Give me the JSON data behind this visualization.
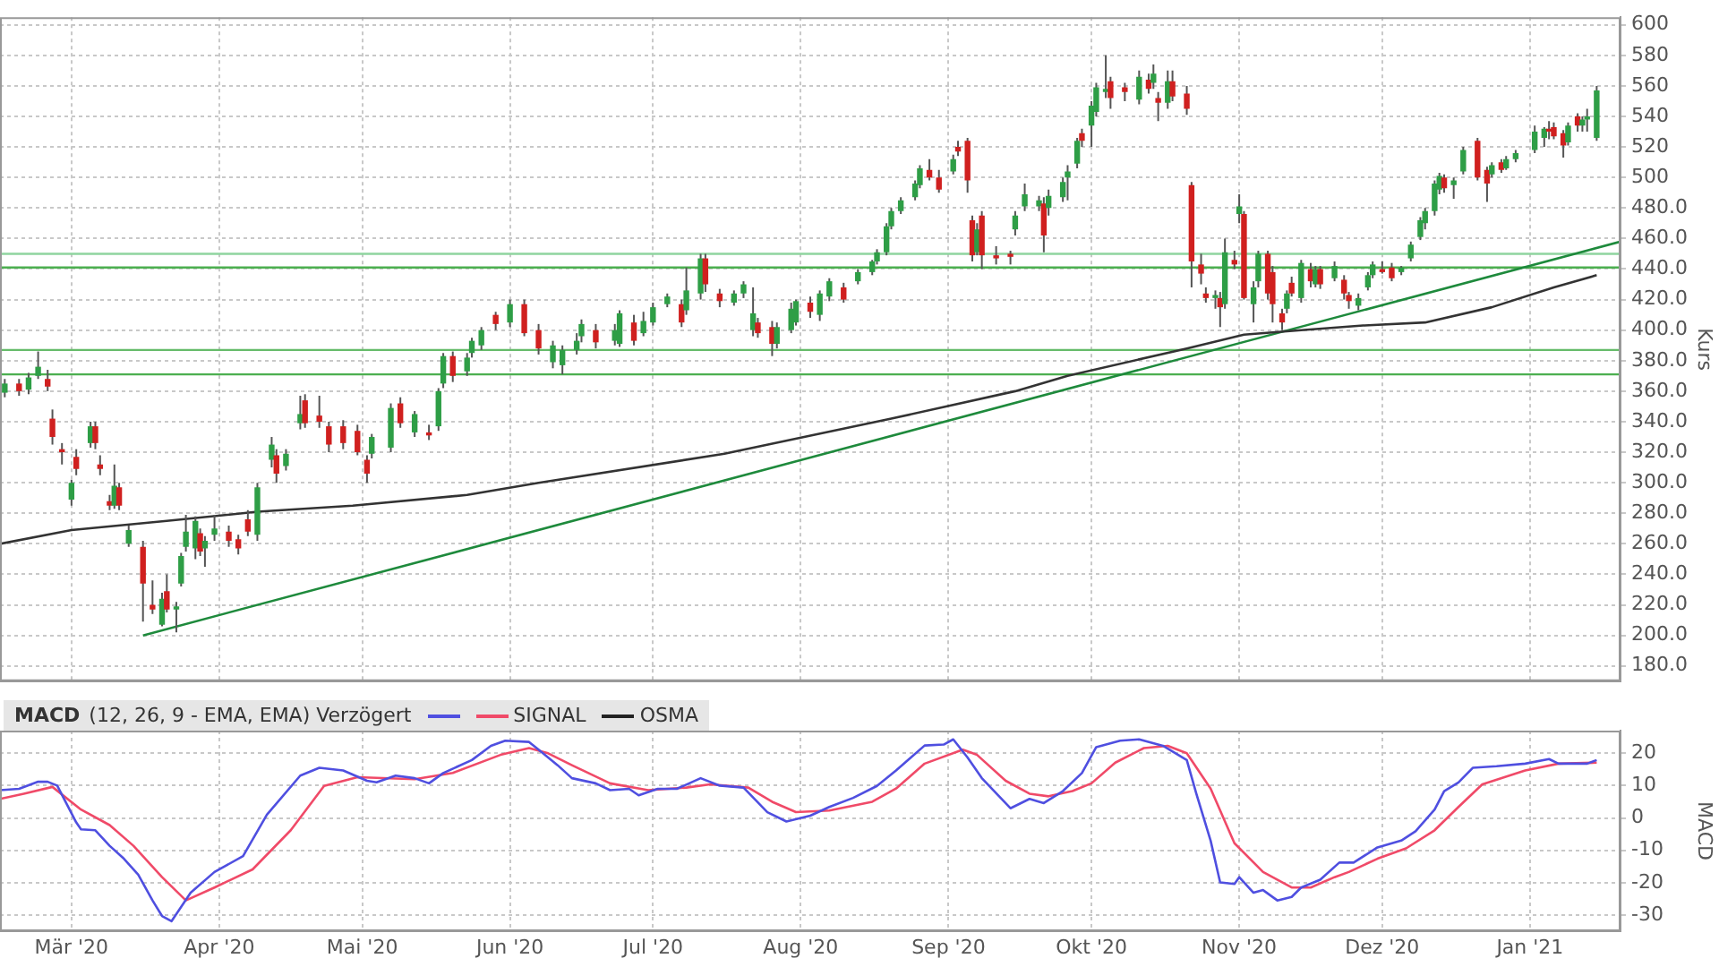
{
  "chart_data": [
    {
      "type": "candlestick",
      "ylabel": "Kurs",
      "xlim": [
        "2020-02-15",
        "2021-01-20"
      ],
      "ylim": [
        170,
        605
      ],
      "xticks": [
        {
          "value": "2020-03-01",
          "label": null
        },
        {
          "value": "2020-04-01",
          "label": null
        },
        {
          "value": "2020-05-01",
          "label": null
        },
        {
          "value": "2020-06-01",
          "label": null
        },
        {
          "value": "2020-07-01",
          "label": null
        },
        {
          "value": "2020-08-01",
          "label": null
        },
        {
          "value": "2020-09-01",
          "label": null
        },
        {
          "value": "2020-10-01",
          "label": null
        },
        {
          "value": "2020-11-01",
          "label": null
        },
        {
          "value": "2020-12-01",
          "label": null
        },
        {
          "value": "2021-01-01",
          "label": null
        }
      ],
      "yticks": [
        {
          "value": 180,
          "label": "180.0"
        },
        {
          "value": 200,
          "label": "200.0"
        },
        {
          "value": 220,
          "label": "220.0"
        },
        {
          "value": 240,
          "label": "240.0"
        },
        {
          "value": 260,
          "label": "260.0"
        },
        {
          "value": 280,
          "label": "280.0"
        },
        {
          "value": 300,
          "label": "300.0"
        },
        {
          "value": 320,
          "label": "320.0"
        },
        {
          "value": 340,
          "label": "340.0"
        },
        {
          "value": 360,
          "label": "360.0"
        },
        {
          "value": 380,
          "label": "380.0"
        },
        {
          "value": 400,
          "label": "400.0"
        },
        {
          "value": 420,
          "label": "420.0"
        },
        {
          "value": 440,
          "label": "440.0"
        },
        {
          "value": 460,
          "label": "460.0"
        },
        {
          "value": 480,
          "label": "480.0"
        },
        500,
        520,
        540,
        560,
        580,
        600
      ],
      "tick_labels": "y",
      "grid": true,
      "legend": false,
      "x": [
        "2020-02-16",
        "2020-02-19",
        "2020-02-21",
        "2020-02-23",
        "2020-02-25",
        "2020-02-26",
        "2020-02-28",
        "2020-03-01",
        "2020-03-02",
        "2020-03-05",
        "2020-03-06",
        "2020-03-07",
        "2020-03-09",
        "2020-03-10",
        "2020-03-11",
        "2020-03-13",
        "2020-03-16",
        "2020-03-18",
        "2020-03-20",
        "2020-03-21",
        "2020-03-23",
        "2020-03-24",
        "2020-03-25",
        "2020-03-27",
        "2020-03-28",
        "2020-03-29",
        "2020-03-31",
        "2020-04-03",
        "2020-04-05",
        "2020-04-07",
        "2020-04-09",
        "2020-04-12",
        "2020-04-13",
        "2020-04-15",
        "2020-04-18",
        "2020-04-19",
        "2020-04-22",
        "2020-04-24",
        "2020-04-27",
        "2020-04-30",
        "2020-05-02",
        "2020-05-03",
        "2020-05-07",
        "2020-05-09",
        "2020-05-12",
        "2020-05-15",
        "2020-05-17",
        "2020-05-18",
        "2020-05-20",
        "2020-05-23",
        "2020-05-24",
        "2020-05-26",
        "2020-05-29",
        "2020-06-01",
        "2020-06-04",
        "2020-06-07",
        "2020-06-10",
        "2020-06-12",
        "2020-06-15",
        "2020-06-16",
        "2020-06-19",
        "2020-06-23",
        "2020-06-24",
        "2020-06-27",
        "2020-06-29",
        "2020-07-01",
        "2020-07-04",
        "2020-07-07",
        "2020-07-08",
        "2020-07-11",
        "2020-07-12",
        "2020-07-15",
        "2020-07-18",
        "2020-07-20",
        "2020-07-22",
        "2020-07-23",
        "2020-07-26",
        "2020-07-27",
        "2020-07-30",
        "2020-07-31",
        "2020-08-03",
        "2020-08-05",
        "2020-08-07",
        "2020-08-10",
        "2020-08-13",
        "2020-08-16",
        "2020-08-17",
        "2020-08-19",
        "2020-08-20",
        "2020-08-22",
        "2020-08-25",
        "2020-08-26",
        "2020-08-28",
        "2020-08-30",
        "2020-09-02",
        "2020-09-03",
        "2020-09-05",
        "2020-09-06",
        "2020-09-07",
        "2020-09-08",
        "2020-09-11",
        "2020-09-14",
        "2020-09-15",
        "2020-09-17",
        "2020-09-20",
        "2020-09-21",
        "2020-09-22",
        "2020-09-25",
        "2020-09-26",
        "2020-09-28",
        "2020-09-29",
        "2020-10-01",
        "2020-10-02",
        "2020-10-04",
        "2020-10-05",
        "2020-10-08",
        "2020-10-11",
        "2020-10-13",
        "2020-10-14",
        "2020-10-15",
        "2020-10-17",
        "2020-10-18",
        "2020-10-21",
        "2020-10-22",
        "2020-10-24",
        "2020-10-25",
        "2020-10-27",
        "2020-10-28",
        "2020-10-29",
        "2020-10-31",
        "2020-11-01",
        "2020-11-02",
        "2020-11-04",
        "2020-11-05",
        "2020-11-07",
        "2020-11-08",
        "2020-11-10",
        "2020-11-11",
        "2020-11-12",
        "2020-11-14",
        "2020-11-16",
        "2020-11-17",
        "2020-11-18",
        "2020-11-21",
        "2020-11-23",
        "2020-11-24",
        "2020-11-26",
        "2020-11-28",
        "2020-11-29",
        "2020-12-01",
        "2020-12-03",
        "2020-12-05",
        "2020-12-07",
        "2020-12-09",
        "2020-12-10",
        "2020-12-12",
        "2020-12-13",
        "2020-12-14",
        "2020-12-16",
        "2020-12-18",
        "2020-12-21",
        "2020-12-23",
        "2020-12-24",
        "2020-12-26",
        "2020-12-27",
        "2020-12-29",
        "2021-01-02",
        "2021-01-04",
        "2021-01-05",
        "2021-01-06",
        "2021-01-08",
        "2021-01-09",
        "2021-01-11",
        "2021-01-12",
        "2021-01-13",
        "2021-01-15"
      ],
      "ohlc": [
        [
          359,
          368,
          356,
          365
        ],
        [
          365,
          368,
          357,
          360
        ],
        [
          361,
          372,
          358,
          369
        ],
        [
          370,
          386,
          368,
          376
        ],
        [
          368,
          374,
          360,
          363
        ],
        [
          342,
          348,
          325,
          330
        ],
        [
          322,
          326,
          312,
          320
        ],
        [
          289,
          302,
          285,
          300
        ],
        [
          317,
          322,
          305,
          309
        ],
        [
          326,
          340,
          323,
          337
        ],
        [
          337,
          340,
          322,
          326
        ],
        [
          312,
          318,
          305,
          309
        ],
        [
          288,
          292,
          282,
          285
        ],
        [
          285,
          312,
          283,
          298
        ],
        [
          297,
          300,
          282,
          285
        ],
        [
          260,
          272,
          258,
          269
        ],
        [
          258,
          262,
          209,
          234
        ],
        [
          220,
          236,
          214,
          217
        ],
        [
          207,
          228,
          206,
          224
        ],
        [
          229,
          240,
          215,
          217
        ],
        [
          217,
          222,
          202,
          219
        ],
        [
          234,
          254,
          232,
          252
        ],
        [
          258,
          279,
          255,
          268
        ],
        [
          257,
          278,
          250,
          275
        ],
        [
          267,
          270,
          252,
          255
        ],
        [
          257,
          265,
          245,
          262
        ],
        [
          266,
          279,
          262,
          270
        ],
        [
          268,
          272,
          258,
          262
        ],
        [
          263,
          266,
          253,
          257
        ],
        [
          276,
          282,
          265,
          268
        ],
        [
          266,
          300,
          262,
          297
        ],
        [
          315,
          330,
          310,
          325
        ],
        [
          318,
          322,
          300,
          306
        ],
        [
          311,
          322,
          308,
          319
        ],
        [
          339,
          357,
          335,
          345
        ],
        [
          354,
          358,
          336,
          339
        ],
        [
          344,
          357,
          336,
          340
        ],
        [
          337,
          340,
          320,
          325
        ],
        [
          337,
          341,
          322,
          326
        ],
        [
          334,
          338,
          318,
          320
        ],
        [
          315,
          318,
          300,
          306
        ],
        [
          319,
          332,
          316,
          330
        ],
        [
          323,
          352,
          320,
          349
        ],
        [
          352,
          356,
          336,
          339
        ],
        [
          333,
          347,
          330,
          345
        ],
        [
          333,
          338,
          328,
          331
        ],
        [
          337,
          362,
          334,
          360
        ],
        [
          365,
          385,
          362,
          383
        ],
        [
          383,
          386,
          366,
          370
        ],
        [
          373,
          385,
          370,
          382
        ],
        [
          385,
          395,
          382,
          393
        ],
        [
          390,
          402,
          387,
          400
        ],
        [
          410,
          412,
          400,
          404
        ],
        [
          405,
          420,
          402,
          417
        ],
        [
          417,
          420,
          396,
          398
        ],
        [
          400,
          404,
          384,
          388
        ],
        [
          379,
          393,
          375,
          390
        ],
        [
          377,
          390,
          371,
          387
        ],
        [
          387,
          398,
          384,
          393
        ],
        [
          396,
          407,
          392,
          404
        ],
        [
          400,
          404,
          388,
          392
        ],
        [
          393,
          404,
          390,
          400
        ],
        [
          391,
          413,
          389,
          411
        ],
        [
          405,
          410,
          390,
          393
        ],
        [
          398,
          412,
          396,
          406
        ],
        [
          405,
          418,
          403,
          415
        ],
        [
          417,
          424,
          415,
          422
        ],
        [
          417,
          420,
          402,
          405
        ],
        [
          413,
          441,
          410,
          426
        ],
        [
          424,
          450,
          420,
          447
        ],
        [
          447,
          450,
          425,
          430
        ],
        [
          424,
          427,
          415,
          419
        ],
        [
          418,
          426,
          416,
          424
        ],
        [
          424,
          432,
          421,
          430
        ],
        [
          400,
          428,
          396,
          411
        ],
        [
          405,
          408,
          395,
          398
        ],
        [
          402,
          406,
          383,
          391
        ],
        [
          391,
          405,
          388,
          402
        ],
        [
          400,
          418,
          398,
          414
        ],
        [
          405,
          420,
          403,
          419
        ],
        [
          418,
          422,
          408,
          412
        ],
        [
          410,
          426,
          406,
          424
        ],
        [
          422,
          434,
          419,
          432
        ],
        [
          428,
          431,
          418,
          420
        ],
        [
          432,
          440,
          430,
          438
        ],
        [
          438,
          446,
          436,
          445
        ],
        [
          445,
          453,
          443,
          451
        ],
        [
          451,
          470,
          449,
          468
        ],
        [
          468,
          480,
          466,
          478
        ],
        [
          478,
          487,
          476,
          485
        ],
        [
          487,
          498,
          485,
          496
        ],
        [
          495,
          508,
          493,
          506
        ],
        [
          505,
          512,
          498,
          500
        ],
        [
          500,
          505,
          490,
          492
        ],
        [
          504,
          515,
          502,
          512
        ],
        [
          520,
          524,
          514,
          517
        ],
        [
          524,
          526,
          490,
          498
        ],
        [
          472,
          475,
          445,
          449
        ],
        [
          451,
          470,
          449,
          466
        ],
        [
          475,
          478,
          440,
          449
        ],
        [
          449,
          455,
          443,
          447
        ],
        [
          450,
          452,
          443,
          448
        ],
        [
          466,
          478,
          462,
          475
        ],
        [
          481,
          496,
          478,
          489
        ],
        [
          481,
          488,
          478,
          485
        ],
        [
          483,
          487,
          451,
          462
        ],
        [
          480,
          492,
          475,
          488
        ],
        [
          487,
          500,
          484,
          497
        ],
        [
          500,
          508,
          485,
          504
        ],
        [
          509,
          526,
          506,
          524
        ],
        [
          529,
          532,
          520,
          524
        ],
        [
          534,
          550,
          520,
          547
        ],
        [
          543,
          562,
          540,
          559
        ],
        [
          556,
          580,
          552,
          558
        ],
        [
          563,
          566,
          545,
          552
        ],
        [
          559,
          562,
          550,
          556
        ],
        [
          551,
          570,
          548,
          566
        ],
        [
          564,
          568,
          555,
          558
        ],
        [
          562,
          574,
          558,
          568
        ],
        [
          552,
          556,
          537,
          549
        ],
        [
          549,
          570,
          545,
          563
        ],
        [
          563,
          570,
          550,
          553
        ],
        [
          555,
          560,
          541,
          545
        ],
        [
          495,
          497,
          428,
          445
        ],
        [
          443,
          450,
          430,
          437
        ],
        [
          424,
          428,
          418,
          421
        ],
        [
          421,
          426,
          414,
          423
        ],
        [
          421,
          425,
          402,
          415
        ],
        [
          417,
          460,
          414,
          451
        ],
        [
          446,
          452,
          440,
          443
        ],
        [
          476,
          489,
          470,
          481
        ],
        [
          476,
          478,
          420,
          421
        ],
        [
          417,
          432,
          405,
          428
        ],
        [
          432,
          452,
          428,
          450
        ],
        [
          450,
          452,
          420,
          424
        ],
        [
          438,
          442,
          405,
          417
        ],
        [
          411,
          414,
          400,
          405
        ],
        [
          414,
          426,
          411,
          424
        ],
        [
          431,
          435,
          422,
          424
        ],
        [
          421,
          446,
          418,
          444
        ],
        [
          440,
          444,
          428,
          432
        ],
        [
          430,
          442,
          428,
          440
        ],
        [
          440,
          442,
          427,
          430
        ],
        [
          434,
          445,
          432,
          442
        ],
        [
          433,
          436,
          420,
          424
        ],
        [
          423,
          425,
          414,
          419
        ],
        [
          416,
          424,
          413,
          421
        ],
        [
          428,
          438,
          426,
          436
        ],
        [
          436,
          445,
          434,
          443
        ],
        [
          440,
          445,
          437,
          438
        ],
        [
          441,
          444,
          432,
          434
        ],
        [
          438,
          442,
          436,
          441
        ],
        [
          447,
          458,
          445,
          456
        ],
        [
          461,
          474,
          459,
          472
        ],
        [
          470,
          480,
          466,
          478
        ],
        [
          478,
          498,
          475,
          496
        ],
        [
          492,
          503,
          489,
          501
        ],
        [
          500,
          502,
          490,
          493
        ],
        [
          495,
          500,
          486,
          498
        ],
        [
          504,
          520,
          502,
          518
        ],
        [
          524,
          526,
          498,
          500
        ],
        [
          505,
          507,
          484,
          496
        ],
        [
          502,
          510,
          500,
          508
        ],
        [
          510,
          512,
          503,
          505
        ],
        [
          506,
          514,
          505,
          512
        ],
        [
          512,
          518,
          510,
          516
        ],
        [
          518,
          534,
          516,
          530
        ],
        [
          526,
          533,
          520,
          532
        ],
        [
          532,
          537,
          525,
          530
        ],
        [
          533,
          536,
          525,
          527
        ],
        [
          529,
          531,
          513,
          521
        ],
        [
          523,
          536,
          521,
          534
        ],
        [
          540,
          542,
          530,
          534
        ],
        [
          534,
          540,
          530,
          538
        ],
        [
          538,
          545,
          530,
          540
        ],
        [
          526,
          560,
          524,
          557
        ]
      ],
      "colors": [
        "#2e9e46",
        "#d0201f",
        "#2e9e46",
        "#2e9e46",
        "#d0201f",
        "#d0201f",
        "#d0201f",
        "#2e9e46",
        "#d0201f",
        "#2e9e46",
        "#d0201f",
        "#d0201f",
        "#d0201f",
        "#2e9e46",
        "#d0201f",
        "#2e9e46",
        "#d0201f",
        "#d0201f",
        "#2e9e46",
        "#d0201f",
        "#2e9e46",
        "#2e9e46",
        "#2e9e46",
        "#2e9e46",
        "#d0201f",
        "#2e9e46",
        "#2e9e46",
        "#d0201f",
        "#d0201f",
        "#d0201f",
        "#2e9e46",
        "#2e9e46",
        "#d0201f",
        "#2e9e46",
        "#2e9e46",
        "#d0201f",
        "#d0201f",
        "#d0201f",
        "#d0201f",
        "#d0201f",
        "#d0201f",
        "#2e9e46",
        "#2e9e46",
        "#d0201f",
        "#2e9e46",
        "#d0201f",
        "#2e9e46",
        "#2e9e46",
        "#d0201f",
        "#2e9e46",
        "#2e9e46",
        "#2e9e46",
        "#d0201f",
        "#2e9e46",
        "#d0201f",
        "#d0201f",
        "#2e9e46",
        "#2e9e46",
        "#2e9e46",
        "#2e9e46",
        "#d0201f",
        "#2e9e46",
        "#2e9e46",
        "#d0201f",
        "#2e9e46",
        "#2e9e46",
        "#2e9e46",
        "#d0201f",
        "#2e9e46",
        "#2e9e46",
        "#d0201f",
        "#d0201f",
        "#2e9e46",
        "#2e9e46",
        "#2e9e46",
        "#d0201f",
        "#d0201f",
        "#2e9e46",
        "#2e9e46",
        "#2e9e46",
        "#d0201f",
        "#2e9e46",
        "#2e9e46",
        "#d0201f",
        "#2e9e46",
        "#2e9e46",
        "#2e9e46",
        "#2e9e46",
        "#2e9e46",
        "#2e9e46",
        "#2e9e46",
        "#2e9e46",
        "#d0201f",
        "#d0201f",
        "#2e9e46",
        "#d0201f",
        "#d0201f",
        "#d0201f",
        "#2e9e46",
        "#d0201f",
        "#d0201f",
        "#d0201f",
        "#2e9e46",
        "#2e9e46",
        "#2e9e46",
        "#d0201f",
        "#2e9e46",
        "#2e9e46",
        "#2e9e46",
        "#2e9e46",
        "#d0201f",
        "#2e9e46",
        "#2e9e46",
        "#2e9e46",
        "#d0201f",
        "#d0201f",
        "#2e9e46",
        "#d0201f",
        "#2e9e46",
        "#d0201f",
        "#2e9e46",
        "#d0201f",
        "#d0201f",
        "#d0201f",
        "#d0201f",
        "#d0201f",
        "#2e9e46",
        "#d0201f",
        "#2e9e46",
        "#d0201f",
        "#2e9e46",
        "#d0201f",
        "#2e9e46",
        "#2e9e46",
        "#d0201f",
        "#d0201f",
        "#d0201f",
        "#2e9e46",
        "#d0201f",
        "#2e9e46",
        "#d0201f",
        "#2e9e46",
        "#d0201f",
        "#2e9e46",
        "#d0201f",
        "#d0201f",
        "#2e9e46",
        "#2e9e46",
        "#2e9e46",
        "#d0201f",
        "#d0201f",
        "#2e9e46",
        "#2e9e46",
        "#2e9e46",
        "#2e9e46",
        "#2e9e46",
        "#2e9e46",
        "#d0201f",
        "#2e9e46",
        "#2e9e46",
        "#d0201f",
        "#d0201f",
        "#2e9e46",
        "#d0201f",
        "#2e9e46",
        "#2e9e46",
        "#2e9e46",
        "#2e9e46",
        "#d0201f",
        "#d0201f",
        "#d0201f",
        "#2e9e46",
        "#d0201f",
        "#2e9e46",
        "#2e9e46",
        "#2e9e46"
      ],
      "series": [
        {
          "type": "line",
          "color": "#333333",
          "x": [
            "2020-02-15",
            "2020-03-01",
            "2020-03-21",
            "2020-04-09",
            "2020-04-29",
            "2020-05-23",
            "2020-06-07",
            "2020-07-16",
            "2020-08-20",
            "2020-09-15",
            "2020-09-26",
            "2020-10-21",
            "2020-11-02",
            "2020-11-14",
            "2020-11-27",
            "2020-12-10",
            "2020-12-24",
            "2021-01-06",
            "2021-01-15"
          ],
          "values": [
            260,
            269,
            275,
            281,
            285,
            292,
            300,
            319,
            342,
            360,
            370,
            388,
            397,
            400,
            403,
            405,
            415,
            428,
            436
          ]
        },
        {
          "type": "line",
          "color": "#1e8a3c",
          "x": [
            "2020-03-16",
            "2021-01-20"
          ],
          "values": [
            200,
            458
          ]
        }
      ],
      "ref_lines": [
        {
          "axis": "y",
          "value": 450,
          "color": "#8fd49f"
        },
        {
          "axis": "y",
          "value": 441,
          "color": "#4caf50"
        },
        {
          "axis": "y",
          "value": 387,
          "color": "#66bb6a"
        },
        {
          "axis": "y",
          "value": 371,
          "color": "#4caf50"
        }
      ]
    },
    {
      "type": "line",
      "title": "MACD",
      "subtitle": "(12, 26, 9 - EMA, EMA) Verzögert",
      "ylabel": "MACD",
      "xlim": [
        "2020-02-15",
        "2021-01-20"
      ],
      "ylim": [
        -35,
        27
      ],
      "xticks": [
        {
          "value": "2020-03-01",
          "label": "Mär '20"
        },
        {
          "value": "2020-04-01",
          "label": "Apr '20"
        },
        {
          "value": "2020-05-01",
          "label": "Mai '20"
        },
        {
          "value": "2020-06-01",
          "label": "Jun '20"
        },
        {
          "value": "2020-07-01",
          "label": "Jul '20"
        },
        {
          "value": "2020-08-01",
          "label": "Aug '20"
        },
        {
          "value": "2020-09-01",
          "label": "Sep '20"
        },
        {
          "value": "2020-10-01",
          "label": "Okt '20"
        },
        {
          "value": "2020-11-01",
          "label": "Nov '20"
        },
        {
          "value": "2020-12-01",
          "label": "Dez '20"
        },
        {
          "value": "2021-01-01",
          "label": "Jan '21"
        }
      ],
      "yticks": [
        -30,
        -20,
        -10,
        0,
        10,
        20
      ],
      "grid": true,
      "legend": "top left",
      "series": [
        {
          "color": "#4f4fe0",
          "x": [
            "2020-02-15",
            "2020-02-19",
            "2020-02-23",
            "2020-02-25",
            "2020-02-27",
            "2020-03-02",
            "2020-03-03",
            "2020-03-06",
            "2020-03-09",
            "2020-03-12",
            "2020-03-15",
            "2020-03-18",
            "2020-03-20",
            "2020-03-22",
            "2020-03-26",
            "2020-03-31",
            "2020-04-06",
            "2020-04-11",
            "2020-04-18",
            "2020-04-22",
            "2020-04-27",
            "2020-05-02",
            "2020-05-04",
            "2020-05-08",
            "2020-05-12",
            "2020-05-15",
            "2020-05-18",
            "2020-05-24",
            "2020-05-28",
            "2020-05-31",
            "2020-06-05",
            "2020-06-07",
            "2020-06-11",
            "2020-06-14",
            "2020-06-19",
            "2020-06-22",
            "2020-06-26",
            "2020-06-28",
            "2020-07-02",
            "2020-07-06",
            "2020-07-11",
            "2020-07-15",
            "2020-07-20",
            "2020-07-25",
            "2020-07-29",
            "2020-08-03",
            "2020-08-07",
            "2020-08-12",
            "2020-08-17",
            "2020-08-21",
            "2020-08-27",
            "2020-08-31",
            "2020-09-02",
            "2020-09-05",
            "2020-09-08",
            "2020-09-14",
            "2020-09-18",
            "2020-09-21",
            "2020-09-25",
            "2020-09-29",
            "2020-10-02",
            "2020-10-07",
            "2020-10-11",
            "2020-10-16",
            "2020-10-21",
            "2020-10-23",
            "2020-10-26",
            "2020-10-28",
            "2020-10-31",
            "2020-11-01",
            "2020-11-04",
            "2020-11-06",
            "2020-11-09",
            "2020-11-12",
            "2020-11-14",
            "2020-11-18",
            "2020-11-22",
            "2020-11-25",
            "2020-11-30",
            "2020-12-05",
            "2020-12-08",
            "2020-12-12",
            "2020-12-14",
            "2020-12-17",
            "2020-12-20",
            "2020-12-25",
            "2020-12-31",
            "2021-01-05",
            "2021-01-07",
            "2021-01-13",
            "2021-01-15"
          ],
          "values": [
            8.6,
            9,
            11.2,
            11.2,
            10,
            -1.4,
            -3.5,
            -3.8,
            -8.6,
            -12.6,
            -17.5,
            -25.5,
            -30.3,
            -31.9,
            -23.1,
            -16.7,
            -11.8,
            1,
            13.1,
            15.5,
            14.7,
            11.5,
            11,
            13.1,
            12.3,
            10.7,
            13.9,
            17.9,
            22.3,
            23.9,
            23.5,
            21.1,
            16.3,
            12.3,
            10.7,
            8.6,
            9,
            7,
            9,
            9,
            12.3,
            10,
            9.4,
            1.8,
            -1.1,
            0.7,
            3.4,
            6.2,
            9.9,
            14.7,
            22.4,
            22.7,
            24.3,
            18.7,
            12.3,
            3,
            5.9,
            4.6,
            8.3,
            13.9,
            21.9,
            23.9,
            24.3,
            22.3,
            17.9,
            7.5,
            -7,
            -19.9,
            -20.4,
            -18.3,
            -23.1,
            -22.3,
            -25.5,
            -24.4,
            -21.5,
            -19.1,
            -13.8,
            -13.8,
            -9.1,
            -7,
            -4.1,
            2.6,
            8.3,
            11,
            15.5,
            16,
            16.8,
            18.2,
            16.8,
            16.8,
            17.9
          ]
        },
        {
          "name": "SIGNAL",
          "color": "#f04a68",
          "x": [
            "2020-02-15",
            "2020-02-20",
            "2020-02-26",
            "2020-03-03",
            "2020-03-09",
            "2020-03-14",
            "2020-03-20",
            "2020-03-25",
            "2020-03-31",
            "2020-04-08",
            "2020-04-16",
            "2020-04-23",
            "2020-04-30",
            "2020-05-12",
            "2020-05-20",
            "2020-05-30",
            "2020-06-05",
            "2020-06-09",
            "2020-06-14",
            "2020-06-22",
            "2020-06-30",
            "2020-07-08",
            "2020-07-13",
            "2020-07-21",
            "2020-07-26",
            "2020-07-31",
            "2020-08-07",
            "2020-08-16",
            "2020-08-21",
            "2020-08-27",
            "2020-09-04",
            "2020-09-07",
            "2020-09-13",
            "2020-09-18",
            "2020-09-22",
            "2020-09-27",
            "2020-10-01",
            "2020-10-06",
            "2020-10-12",
            "2020-10-17",
            "2020-10-21",
            "2020-10-26",
            "2020-10-31",
            "2020-11-06",
            "2020-11-12",
            "2020-11-16",
            "2020-11-21",
            "2020-11-24",
            "2020-11-30",
            "2020-12-06",
            "2020-12-12",
            "2020-12-17",
            "2020-12-22",
            "2020-12-31",
            "2021-01-07",
            "2021-01-15"
          ],
          "values": [
            5.9,
            7.5,
            9.6,
            2.6,
            -2.2,
            -8.6,
            -18.3,
            -25.5,
            -21.5,
            -15.9,
            -3.8,
            9.9,
            12.6,
            12,
            13.9,
            19.5,
            21.6,
            20,
            16.3,
            10.7,
            8.6,
            9.4,
            10.4,
            9.4,
            5,
            1.8,
            2.3,
            5,
            9.1,
            16.8,
            21.1,
            19.5,
            11.5,
            7.5,
            6.7,
            8.3,
            10.7,
            17.1,
            21.6,
            22.3,
            20,
            9.1,
            -7.8,
            -16.7,
            -21.5,
            -21.5,
            -18.3,
            -16.7,
            -12.6,
            -9.4,
            -3.8,
            3.4,
            10.4,
            14.7,
            16.8,
            17.1
          ]
        },
        {
          "name": "OSMA",
          "color": "#222222"
        }
      ]
    }
  ]
}
